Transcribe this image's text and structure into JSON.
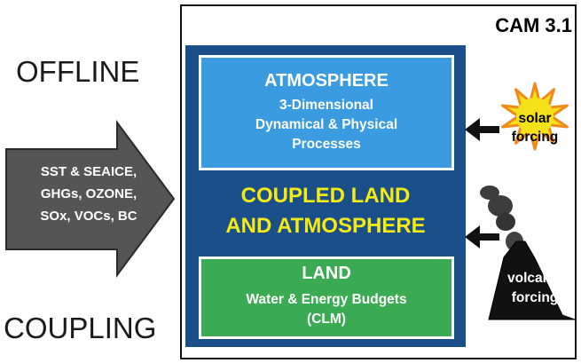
{
  "left_labels": {
    "top": "OFFLINE",
    "bottom": "COUPLING"
  },
  "input_arrow": {
    "text": "SST & SEAICE,\nGHGs, OZONE,\nSOx, VOCs, BC",
    "fill": "#555555"
  },
  "model": {
    "name": "CAM 3.1",
    "coupled_label": "COUPLED LAND\nAND ATMOSPHERE",
    "frame_fill": "#1a4f8a",
    "coupled_text_color": "#f5ea13",
    "atmosphere": {
      "title": "ATMOSPHERE",
      "description": "3-Dimensional\nDynamical & Physical\nProcesses",
      "fill": "#3a9be0"
    },
    "land": {
      "title": "LAND",
      "description": "Water & Energy Budgets\n(CLM)",
      "fill": "#3aab52"
    }
  },
  "external_forcings": {
    "solar": {
      "label": "solar\nforcing",
      "icon": "sun-icon",
      "fill": "#f5e11a",
      "outline": "#f08a1c"
    },
    "volcanic": {
      "label": "volcanic\nforcing",
      "icon": "volcano-icon",
      "fill": "#111111"
    }
  }
}
